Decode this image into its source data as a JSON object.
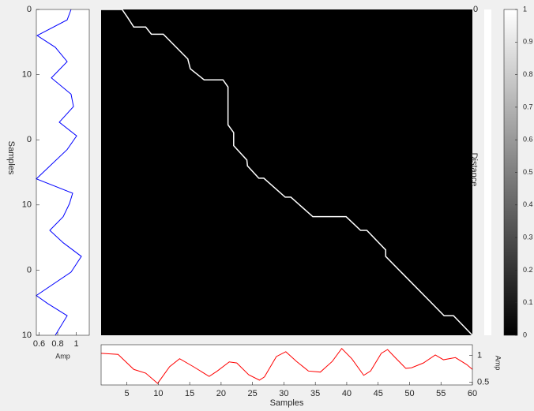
{
  "chart_data": [
    {
      "type": "line",
      "orientation": "vertical",
      "xlabel": "Amp",
      "ylabel": "Samples",
      "x": [
        0,
        1.6,
        4,
        5.8,
        8,
        10.5,
        13,
        14.9,
        17.3,
        19.4,
        21.5,
        26,
        28.2,
        29.8,
        31.8,
        33.9,
        35.8,
        37.9,
        40.3,
        43.9,
        45.1,
        47,
        50
      ],
      "series": [
        {
          "color": "#0000ff",
          "values": [
            0.944,
            0.902,
            0.579,
            0.774,
            0.902,
            0.732,
            0.944,
            0.97,
            0.817,
            1.004,
            0.902,
            0.57,
            0.961,
            0.927,
            0.859,
            0.715,
            0.859,
            1.055,
            0.944,
            0.57,
            0.689,
            0.902,
            0.774
          ]
        }
      ],
      "xlim": [
        0.57,
        1.14
      ],
      "xticks": [
        0.6,
        0.8,
        1
      ],
      "ylim": [
        0,
        50
      ],
      "yticks": [
        0,
        10,
        {
          "value": 20,
          "label": "0"
        },
        {
          "value": 30,
          "label": "10"
        },
        {
          "value": 40,
          "label": "0"
        },
        {
          "value": 50,
          "label": "10"
        }
      ]
    },
    {
      "type": "heatmap",
      "color": "#000000",
      "side_label": "Distance",
      "strip_label": "0",
      "path": {
        "color": "#ffffff",
        "x": [
          0.9,
          4.24,
          5.1,
          6.1,
          8.0,
          8.9,
          10.8,
          14.7,
          15.1,
          17.3,
          20.3,
          21.1,
          21.1,
          22.0,
          22.0,
          24.1,
          24.2,
          26.0,
          26.8,
          30.2,
          31.1,
          34.6,
          39.9,
          42.2,
          43.2,
          46.2,
          46.2,
          55.5,
          57.0,
          60
        ],
        "y": [
          0,
          0,
          1.2,
          2.7,
          2.7,
          3.8,
          3.8,
          7.6,
          9.1,
          10.8,
          10.8,
          11.9,
          17.7,
          18.9,
          20.9,
          23.1,
          24.0,
          25.9,
          25.9,
          28.8,
          28.8,
          31.8,
          31.8,
          33.9,
          33.9,
          36.9,
          37.9,
          47.0,
          47.0,
          50
        ]
      },
      "xlim": [
        0.9,
        60
      ],
      "ylim": [
        0,
        50
      ]
    },
    {
      "type": "line",
      "orientation": "horizontal",
      "xlabel": "Samples",
      "ylabel": "Amp",
      "x": [
        0.9,
        3.6,
        6.1,
        8.0,
        9.9,
        11.8,
        13.4,
        15.6,
        18.1,
        19.4,
        21.3,
        22.5,
        24.4,
        26.1,
        26.9,
        28.8,
        30.3,
        32.0,
        33.9,
        35.8,
        37.7,
        39.2,
        40.8,
        42.7,
        43.8,
        45.5,
        46.5,
        47.8,
        49.4,
        50.3,
        52.2,
        54.1,
        55.4,
        57.3,
        59.1,
        60
      ],
      "series": [
        {
          "color": "#ff0000",
          "values": [
            1.04,
            1.02,
            0.74,
            0.67,
            0.48,
            0.79,
            0.94,
            0.79,
            0.61,
            0.71,
            0.88,
            0.86,
            0.64,
            0.54,
            0.6,
            0.98,
            1.07,
            0.89,
            0.71,
            0.69,
            0.89,
            1.13,
            0.94,
            0.63,
            0.71,
            1.04,
            1.11,
            0.95,
            0.76,
            0.77,
            0.86,
            1.01,
            0.92,
            0.96,
            0.83,
            0.74
          ]
        }
      ],
      "xlim": [
        0.9,
        60
      ],
      "xticks": [
        5,
        10,
        15,
        20,
        25,
        30,
        35,
        40,
        45,
        50,
        55,
        60
      ],
      "ylim": [
        0.45,
        1.2
      ],
      "yticks": [
        0.5,
        1
      ]
    },
    {
      "type": "colorbar",
      "ylim": [
        0,
        1
      ],
      "yticks": [
        0,
        0.1,
        0.2,
        0.3,
        0.4,
        0.5,
        0.6,
        0.7,
        0.8,
        0.9,
        1
      ]
    }
  ]
}
